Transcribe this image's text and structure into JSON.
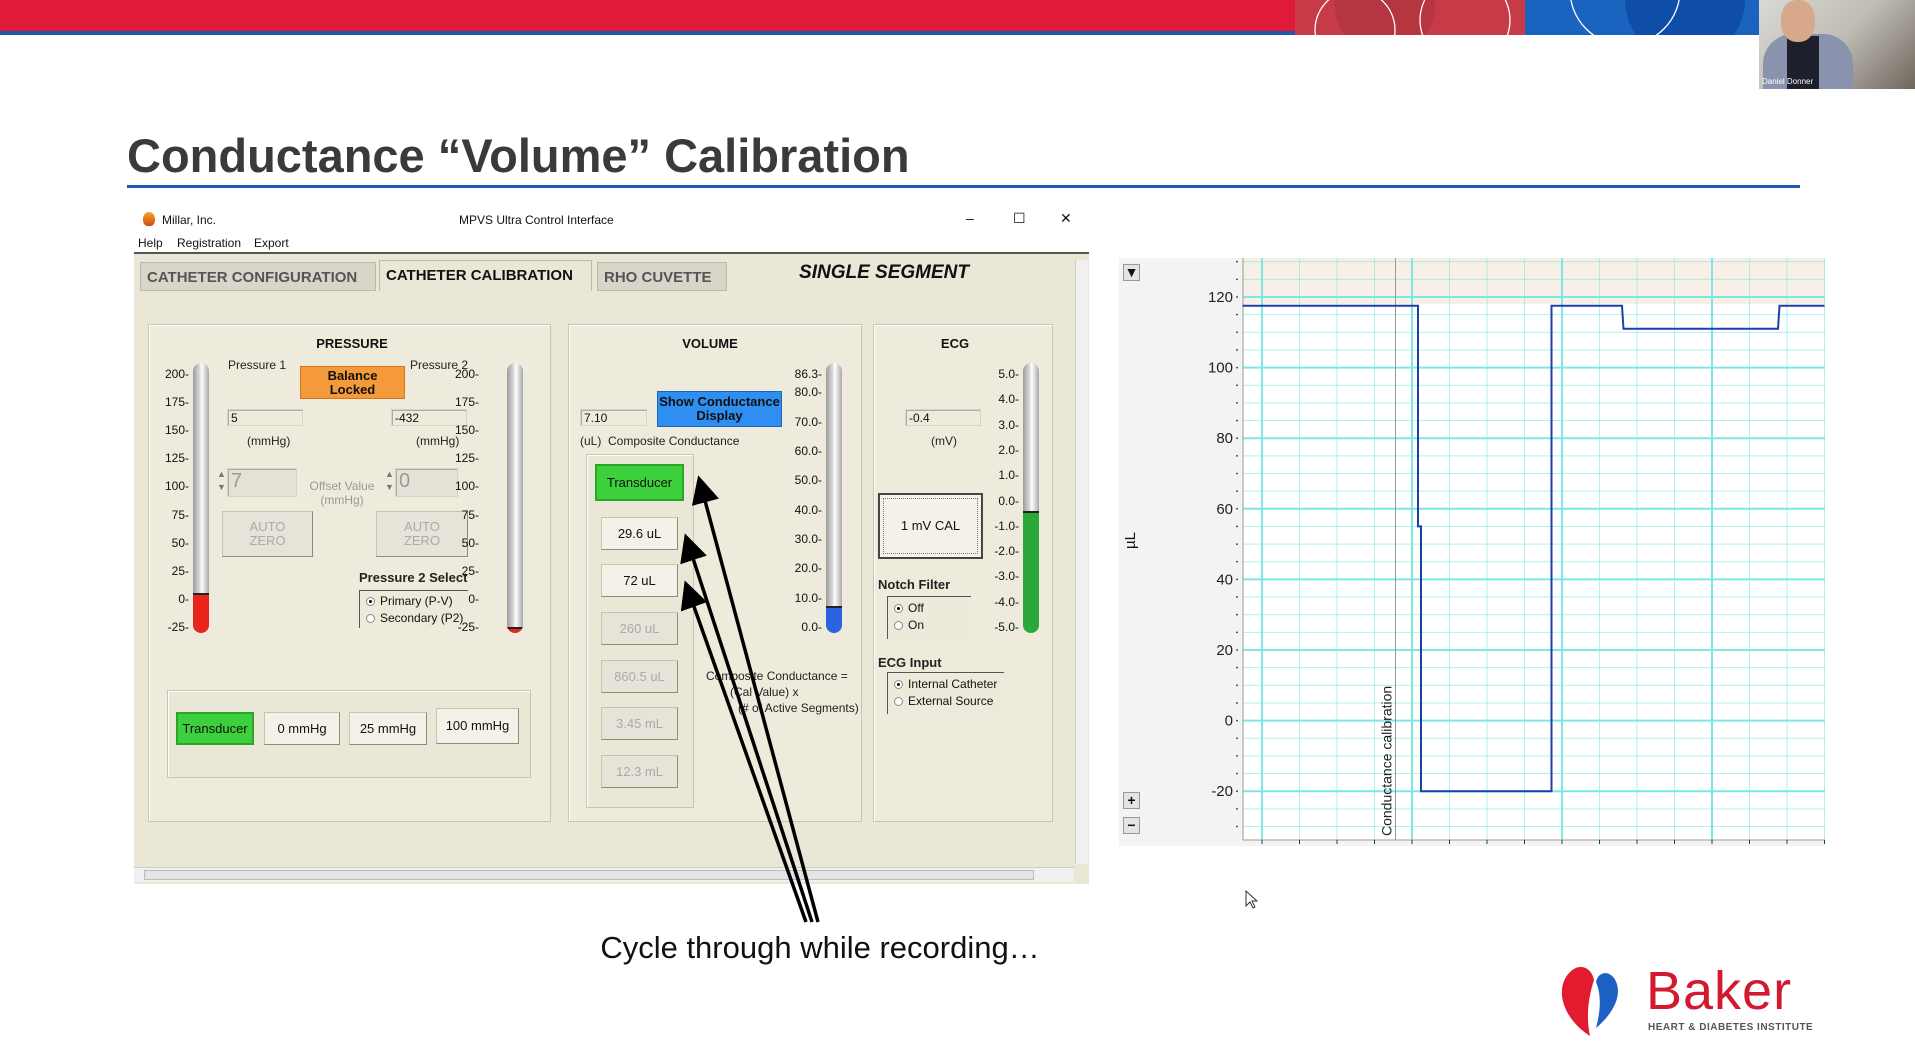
{
  "slide": {
    "title": "Conductance “Volume” Calibration",
    "caption": "Cycle through while recording…",
    "brand_colors": {
      "red": "#e01b3a",
      "blue": "#1f58ad"
    }
  },
  "video": {
    "participant_name": "Daniel Donner"
  },
  "logo": {
    "name": "Baker",
    "subtitle": "HEART & DIABETES INSTITUTE"
  },
  "window": {
    "app_name": "Millar, Inc.",
    "title": "MPVS Ultra Control Interface",
    "controls": {
      "minimize": "–",
      "maximize": "☐",
      "close": "✕"
    },
    "menu": [
      "Help",
      "Registration",
      "Export"
    ],
    "tabs": [
      {
        "label": "CATHETER CONFIGURATION",
        "selected": false
      },
      {
        "label": "CATHETER CALIBRATION",
        "selected": true
      },
      {
        "label": "RHO CUVETTE",
        "selected": false
      }
    ],
    "mode_label": "SINGLE SEGMENT"
  },
  "pressure": {
    "title": "PRESSURE",
    "pressure1_label": "Pressure 1",
    "pressure2_label": "Pressure 2",
    "balance_button": "Balance\nLocked",
    "pressure1_value": "5",
    "pressure2_value": "-432",
    "unit": "(mmHg)",
    "offset_label": "Offset Value\n(mmHg)",
    "offset1": "7",
    "offset2": "0",
    "auto_zero": "AUTO\nZERO",
    "select_title": "Pressure 2 Select",
    "select_options": [
      {
        "label": "Primary (P-V)",
        "selected": true
      },
      {
        "label": "Secondary (P2)",
        "selected": false
      }
    ],
    "cal_buttons": [
      {
        "label": "Transducer",
        "active": true
      },
      {
        "label": "0 mmHg",
        "active": false
      },
      {
        "label": "25 mmHg",
        "active": false
      },
      {
        "label": "100 mmHg",
        "active": false
      }
    ],
    "scale_ticks": [
      "200",
      "175",
      "150",
      "125",
      "100",
      "75",
      "50",
      "25",
      "0",
      "-25"
    ],
    "gauge1_level": 5,
    "gauge2_level": -25,
    "fill_color": "#e8241b"
  },
  "volume": {
    "title": "VOLUME",
    "value": "7.10",
    "unit_label": "(uL)  Composite Conductance",
    "show_button": "Show Conductance\nDisplay",
    "show_button_color": "#2f8ff0",
    "cal_buttons": [
      {
        "label": "Transducer",
        "state": "active"
      },
      {
        "label": "29.6 uL",
        "state": "enabled"
      },
      {
        "label": "72 uL",
        "state": "enabled"
      },
      {
        "label": "260 uL",
        "state": "disabled"
      },
      {
        "label": "860.5 uL",
        "state": "disabled"
      },
      {
        "label": "3.45 mL",
        "state": "disabled"
      },
      {
        "label": "12.3 mL",
        "state": "disabled"
      }
    ],
    "formula": [
      "Composite Conductance =",
      "(Cal Value) x",
      "(# of Active Segments)"
    ],
    "scale_ticks": [
      "86.3",
      "80.0",
      "70.0",
      "60.0",
      "50.0",
      "40.0",
      "30.0",
      "20.0",
      "10.0",
      "0.0"
    ],
    "gauge_level": 7.1,
    "fill_color": "#2a63e0"
  },
  "ecg": {
    "title": "ECG",
    "value": "-0.4",
    "unit": "(mV)",
    "cal_button": "1 mV CAL",
    "notch_title": "Notch Filter",
    "notch_options": [
      {
        "label": "Off",
        "selected": true
      },
      {
        "label": "On",
        "selected": false
      }
    ],
    "input_title": "ECG Input",
    "input_options": [
      {
        "label": "Internal Catheter",
        "selected": true
      },
      {
        "label": "External Source",
        "selected": false
      }
    ],
    "scale_ticks": [
      "5.0",
      "4.0",
      "3.0",
      "2.0",
      "1.0",
      "0.0",
      "-1.0",
      "-2.0",
      "-3.0",
      "-4.0",
      "-5.0"
    ],
    "gauge_level": -0.4,
    "fill_color": "#2aa83a"
  },
  "chart_data": {
    "type": "line",
    "ylabel": "µL",
    "ylim": [
      -34,
      131
    ],
    "yticks": [
      120,
      100,
      80,
      60,
      40,
      20,
      0,
      -20
    ],
    "grid": true,
    "line_color": "#1f3fa8",
    "grid_color": "#7fe6e6",
    "annotation": {
      "label": "Conductance calibration",
      "x": 0.89
    },
    "series": [
      {
        "x": [
          -0.13,
          1.04,
          1.04,
          1.06,
          1.06,
          1.93,
          1.93,
          2.4,
          2.41,
          3.44,
          3.45,
          3.75
        ],
        "y": [
          117.5,
          117.5,
          55,
          55,
          -20,
          -20,
          117.5,
          117.5,
          111,
          111,
          117.5,
          117.5
        ]
      }
    ],
    "controls": {
      "scroll_down": "▼",
      "zoom_in": "+",
      "zoom_out": "−"
    }
  }
}
